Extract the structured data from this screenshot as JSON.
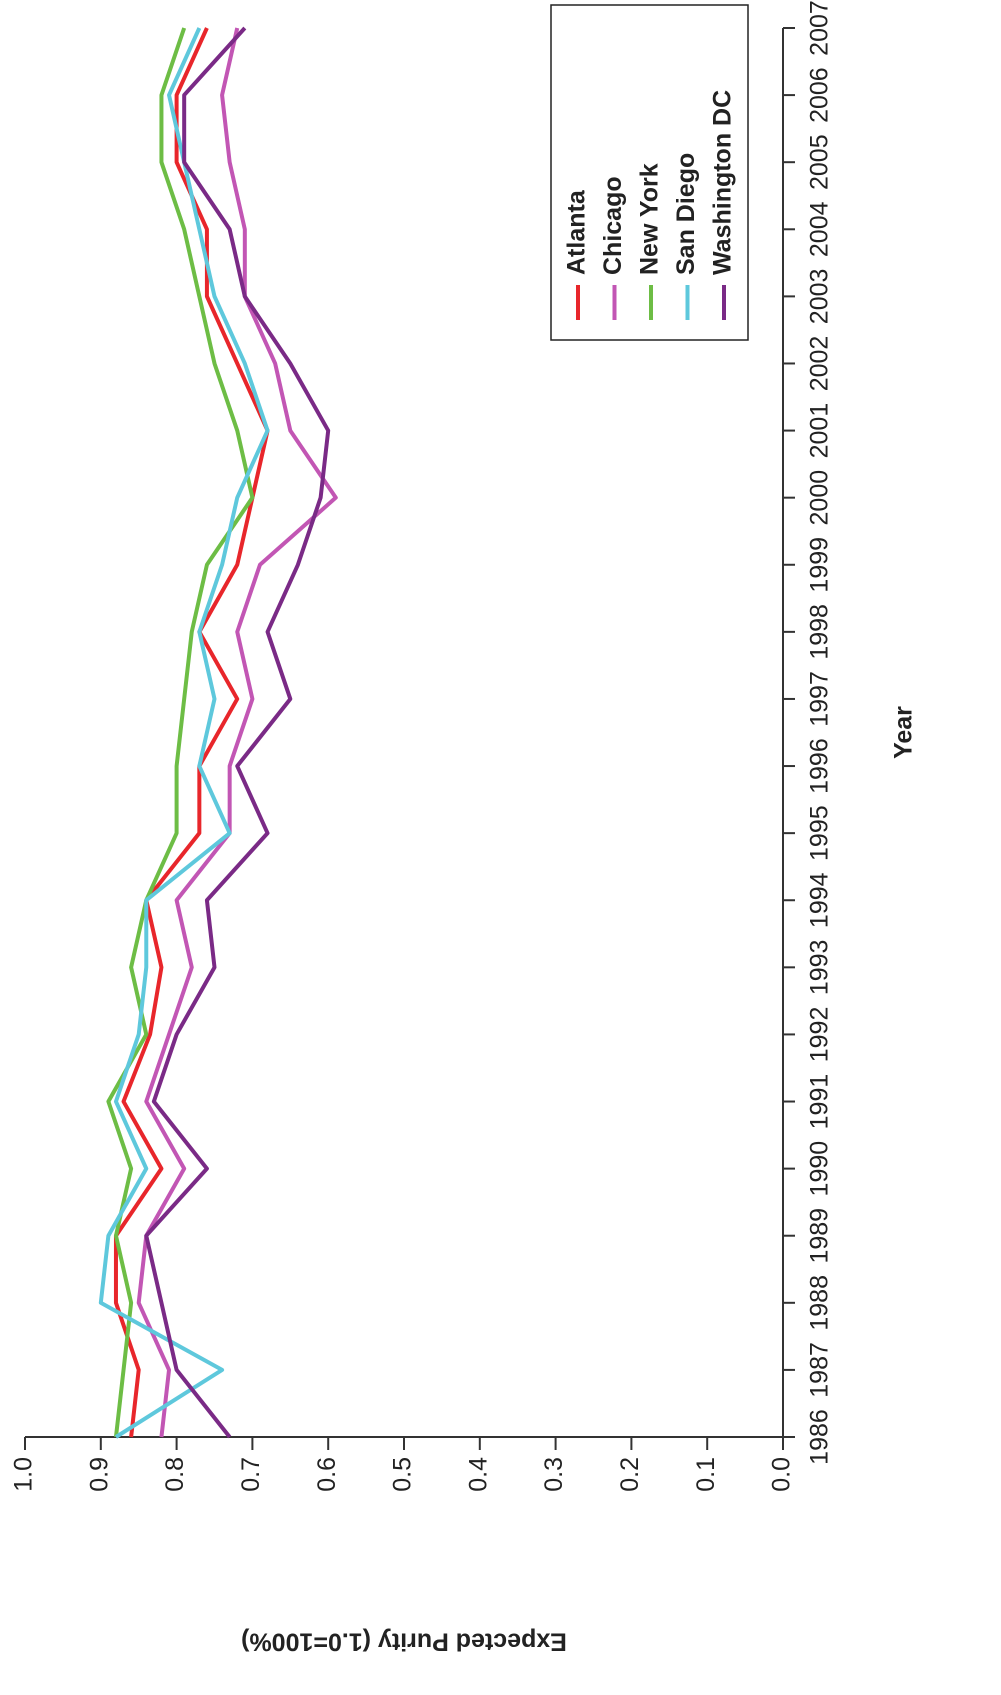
{
  "chart_data": {
    "type": "line",
    "x_label": "Year",
    "y_label": "Expected Purity (1.0=100%)",
    "x": [
      1986,
      1987,
      1988,
      1989,
      1990,
      1991,
      1992,
      1993,
      1994,
      1995,
      1996,
      1997,
      1998,
      1999,
      2000,
      2001,
      2002,
      2003,
      2004,
      2005,
      2006,
      2007
    ],
    "xlim": [
      1986,
      2007
    ],
    "xticks": [
      1986,
      1987,
      1988,
      1989,
      1990,
      1991,
      1992,
      1993,
      1994,
      1995,
      1996,
      1997,
      1998,
      1999,
      2000,
      2001,
      2002,
      2003,
      2004,
      2005,
      2006,
      2007
    ],
    "ylim": [
      0,
      1
    ],
    "yticks": [
      {
        "value": 0,
        "label": "0.0"
      },
      0.1,
      0.2,
      0.3,
      0.4,
      0.5,
      0.6,
      0.7,
      0.8,
      0.9,
      {
        "value": 1,
        "label": "1.0"
      }
    ],
    "legend": "lower right",
    "rotation": -90,
    "series": [
      {
        "name": "Atlanta",
        "color": "#e8262b",
        "values": [
          0.86,
          0.85,
          0.88,
          0.88,
          0.82,
          0.87,
          0.835,
          0.82,
          0.84,
          0.77,
          0.77,
          0.72,
          0.77,
          0.72,
          0.7,
          0.68,
          0.72,
          0.76,
          0.76,
          0.8,
          0.8,
          0.76
        ]
      },
      {
        "name": "Chicago",
        "color": "#c256b4",
        "values": [
          0.82,
          0.81,
          0.85,
          0.84,
          0.79,
          0.84,
          0.81,
          0.78,
          0.8,
          0.73,
          0.73,
          0.7,
          0.72,
          0.69,
          0.59,
          0.65,
          0.67,
          0.71,
          0.71,
          0.73,
          0.74,
          0.72
        ]
      },
      {
        "name": "New York",
        "color": "#6dbd45",
        "values": [
          0.88,
          0.87,
          0.86,
          0.88,
          0.86,
          0.89,
          0.84,
          0.86,
          0.84,
          0.8,
          0.8,
          0.79,
          0.78,
          0.76,
          0.7,
          0.72,
          0.75,
          0.77,
          0.79,
          0.82,
          0.82,
          0.79
        ]
      },
      {
        "name": "San Diego",
        "color": "#5ec8dc",
        "values": [
          0.88,
          0.74,
          0.9,
          0.89,
          0.84,
          0.88,
          0.85,
          0.84,
          0.84,
          0.73,
          0.77,
          0.75,
          0.77,
          0.74,
          0.72,
          0.68,
          0.71,
          0.75,
          0.77,
          0.79,
          0.81,
          0.77
        ]
      },
      {
        "name": "Washington DC",
        "color": "#7a2a86",
        "values": [
          0.73,
          0.8,
          0.82,
          0.84,
          0.76,
          0.83,
          0.8,
          0.75,
          0.76,
          0.68,
          0.72,
          0.65,
          0.68,
          0.64,
          0.61,
          0.6,
          0.65,
          0.71,
          0.73,
          0.79,
          0.79,
          0.71
        ]
      }
    ]
  }
}
